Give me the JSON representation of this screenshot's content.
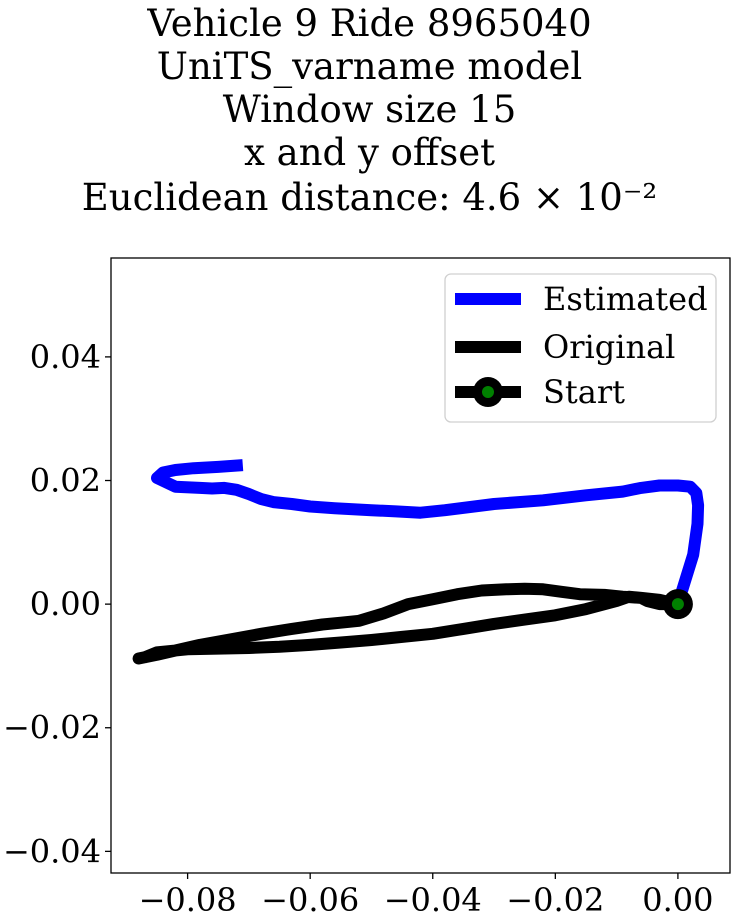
{
  "chart_data": {
    "type": "line",
    "title_lines": [
      "Vehicle 9 Ride 8965040",
      "UniTS_varname model",
      "Window size 15",
      "x and y offset",
      "Euclidean distance: 4.6 × 10⁻²"
    ],
    "xlabel": "",
    "ylabel": "",
    "xlim": [
      -0.0925,
      0.0085
    ],
    "ylim": [
      -0.0435,
      0.056
    ],
    "x_ticks": [
      -0.08,
      -0.06,
      -0.04,
      -0.02,
      0.0
    ],
    "x_tick_labels": [
      "−0.08",
      "−0.06",
      "−0.04",
      "−0.02",
      "0.00"
    ],
    "y_ticks": [
      -0.04,
      -0.02,
      0.0,
      0.02,
      0.04
    ],
    "y_tick_labels": [
      "−0.04",
      "−0.02",
      "0.00",
      "0.02",
      "0.04"
    ],
    "grid": false,
    "legend_position": "top-right",
    "series": [
      {
        "name": "Estimated",
        "color": "#0000ff",
        "x": [
          0.0,
          0.0025,
          0.0032,
          0.0033,
          0.003,
          0.002,
          0.0,
          -0.003,
          -0.006,
          -0.009,
          -0.015,
          -0.022,
          -0.03,
          -0.038,
          -0.042,
          -0.046,
          -0.05,
          -0.056,
          -0.06,
          -0.063,
          -0.066,
          -0.068,
          -0.07,
          -0.072,
          -0.074,
          -0.076,
          -0.078,
          -0.082,
          -0.085,
          -0.084,
          -0.082,
          -0.079,
          -0.075,
          -0.071
        ],
        "y": [
          0.0,
          0.008,
          0.013,
          0.016,
          0.018,
          0.019,
          0.0192,
          0.0192,
          0.0188,
          0.0182,
          0.0176,
          0.0168,
          0.0162,
          0.0152,
          0.0148,
          0.015,
          0.0152,
          0.0155,
          0.0158,
          0.0162,
          0.0165,
          0.017,
          0.0178,
          0.0185,
          0.0188,
          0.0187,
          0.0188,
          0.019,
          0.0204,
          0.0213,
          0.0217,
          0.022,
          0.0222,
          0.0225
        ]
      },
      {
        "name": "Original",
        "color": "#000000",
        "x": [
          0.0,
          -0.003,
          -0.005,
          -0.006,
          -0.008,
          -0.01,
          -0.015,
          -0.02,
          -0.025,
          -0.03,
          -0.035,
          -0.04,
          -0.045,
          -0.05,
          -0.055,
          -0.06,
          -0.065,
          -0.07,
          -0.075,
          -0.08,
          -0.085,
          -0.087,
          -0.088,
          -0.085,
          -0.082,
          -0.078,
          -0.073,
          -0.068,
          -0.063,
          -0.058,
          -0.055,
          -0.052,
          -0.048,
          -0.044,
          -0.04,
          -0.036,
          -0.032,
          -0.028,
          -0.025,
          -0.022,
          -0.019,
          -0.016,
          -0.012,
          -0.009,
          -0.006,
          -0.003,
          0.0
        ],
        "y": [
          0.0,
          0.0,
          0.0005,
          0.001,
          0.0012,
          0.0005,
          -0.0008,
          -0.0018,
          -0.0025,
          -0.0032,
          -0.004,
          -0.0048,
          -0.0053,
          -0.0058,
          -0.0062,
          -0.0066,
          -0.0069,
          -0.0071,
          -0.0072,
          -0.0073,
          -0.0078,
          -0.0086,
          -0.0088,
          -0.0082,
          -0.0075,
          -0.0066,
          -0.0057,
          -0.0048,
          -0.004,
          -0.0033,
          -0.003,
          -0.0027,
          -0.0015,
          0.0,
          0.0008,
          0.0016,
          0.0022,
          0.0024,
          0.0025,
          0.0024,
          0.002,
          0.0016,
          0.0015,
          0.0012,
          0.001,
          0.0007,
          0.0
        ]
      }
    ],
    "start": {
      "name": "Start",
      "x": 0.0,
      "y": 0.0,
      "outer_color": "#000000",
      "inner_color": "#008000"
    }
  }
}
